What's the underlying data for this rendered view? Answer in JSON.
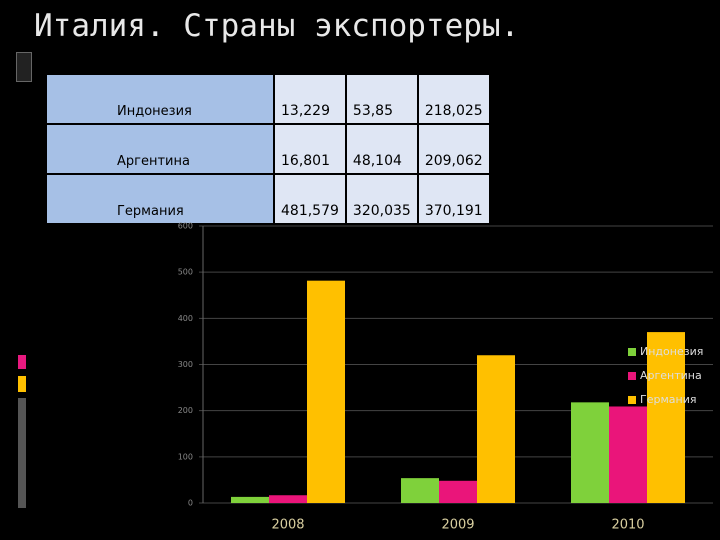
{
  "title": "Италия. Страны экспортеры.",
  "table": {
    "rows": [
      [
        "Индонезия",
        "13,229",
        "53,85",
        "218,025"
      ],
      [
        "Аргентина",
        "16,801",
        "48,104",
        "209,062"
      ],
      [
        "Германия",
        "481,579",
        "320,035",
        "370,191"
      ]
    ]
  },
  "chart_data": {
    "type": "bar",
    "categories": [
      "2008",
      "2009",
      "2010"
    ],
    "series": [
      {
        "name": "Индонезия",
        "color": "#7fd13b",
        "values": [
          13.229,
          53.85,
          218.025
        ]
      },
      {
        "name": "Аргентина",
        "color": "#ea157a",
        "values": [
          16.801,
          48.104,
          209.062
        ]
      },
      {
        "name": "Германия",
        "color": "#ffc000",
        "values": [
          481.579,
          320.035,
          370.191
        ]
      }
    ],
    "ylim": [
      0,
      600
    ],
    "yticks": [
      0,
      100,
      200,
      300,
      400,
      500,
      600
    ],
    "grid": true,
    "legend": "right"
  }
}
